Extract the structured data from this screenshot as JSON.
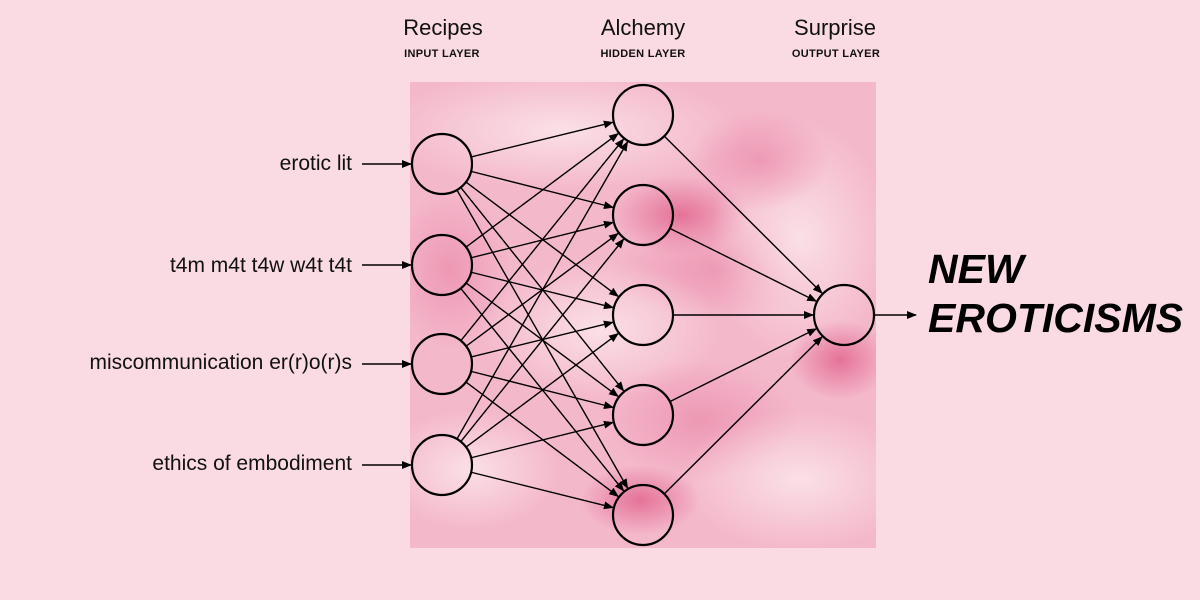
{
  "colors": {
    "background": "#fadbe3",
    "panel": "#f4b8cb",
    "panel_accent": "#e97fa2",
    "line": "#000000"
  },
  "layers": {
    "input": {
      "title": "Recipes",
      "subtitle": "INPUT LAYER"
    },
    "hidden": {
      "title": "Alchemy",
      "subtitle": "HIDDEN LAYER"
    },
    "output": {
      "title": "Surprise",
      "subtitle": "OUTPUT LAYER"
    }
  },
  "inputs": [
    "erotic lit",
    "t4m m4t t4w w4t t4t",
    "miscommunication er(r)o(r)s",
    "ethics of embodiment"
  ],
  "hidden_node_count": 5,
  "output": {
    "lines": [
      "NEW",
      "EROTICISMS"
    ]
  }
}
